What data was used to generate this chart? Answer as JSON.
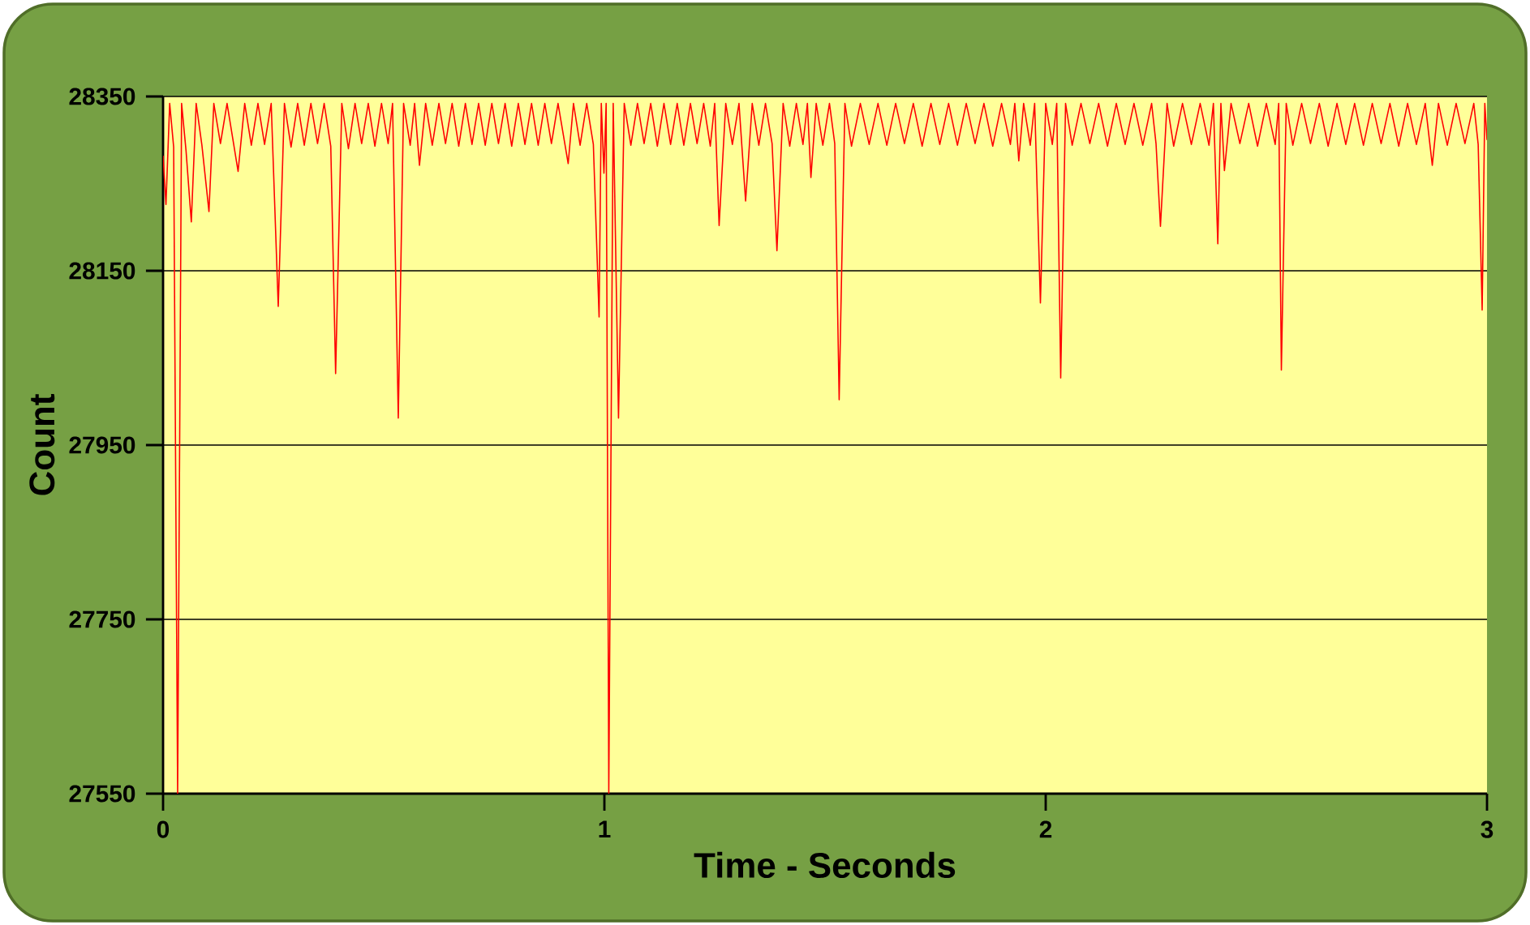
{
  "chart_data": {
    "type": "line",
    "xlabel": "Time - Seconds",
    "ylabel": "Count",
    "x": [
      0,
      0.0066,
      0.015,
      0.024,
      0.033,
      0.042,
      0.052,
      0.064,
      0.075,
      0.088,
      0.104,
      0.115,
      0.13,
      0.145,
      0.17,
      0.185,
      0.2,
      0.215,
      0.23,
      0.245,
      0.261,
      0.275,
      0.29,
      0.305,
      0.32,
      0.335,
      0.35,
      0.365,
      0.38,
      0.391,
      0.405,
      0.42,
      0.435,
      0.45,
      0.465,
      0.48,
      0.495,
      0.51,
      0.52,
      0.533,
      0.545,
      0.56,
      0.57,
      0.581,
      0.595,
      0.61,
      0.625,
      0.64,
      0.655,
      0.67,
      0.685,
      0.7,
      0.715,
      0.73,
      0.745,
      0.76,
      0.775,
      0.79,
      0.805,
      0.82,
      0.835,
      0.85,
      0.865,
      0.88,
      0.895,
      0.918,
      0.93,
      0.945,
      0.96,
      0.975,
      0.988,
      0.993,
      0.999,
      1.004,
      1.01,
      1.02,
      1.032,
      1.045,
      1.06,
      1.075,
      1.09,
      1.105,
      1.12,
      1.135,
      1.15,
      1.165,
      1.18,
      1.195,
      1.21,
      1.225,
      1.24,
      1.25,
      1.26,
      1.275,
      1.29,
      1.305,
      1.32,
      1.335,
      1.35,
      1.365,
      1.38,
      1.391,
      1.405,
      1.42,
      1.435,
      1.45,
      1.46,
      1.468,
      1.48,
      1.495,
      1.51,
      1.522,
      1.532,
      1.545,
      1.56,
      1.58,
      1.6,
      1.62,
      1.64,
      1.66,
      1.68,
      1.7,
      1.72,
      1.74,
      1.76,
      1.78,
      1.8,
      1.82,
      1.84,
      1.86,
      1.88,
      1.9,
      1.92,
      1.93,
      1.939,
      1.95,
      1.965,
      1.975,
      1.988,
      2.0,
      2.015,
      2.025,
      2.034,
      2.045,
      2.06,
      2.08,
      2.1,
      2.12,
      2.14,
      2.16,
      2.18,
      2.2,
      2.22,
      2.24,
      2.25,
      2.26,
      2.275,
      2.29,
      2.31,
      2.33,
      2.35,
      2.37,
      2.38,
      2.39,
      2.397,
      2.405,
      2.42,
      2.44,
      2.46,
      2.48,
      2.5,
      2.52,
      2.528,
      2.534,
      2.545,
      2.56,
      2.58,
      2.6,
      2.62,
      2.64,
      2.66,
      2.68,
      2.7,
      2.72,
      2.74,
      2.76,
      2.78,
      2.8,
      2.82,
      2.84,
      2.86,
      2.876,
      2.89,
      2.91,
      2.93,
      2.95,
      2.97,
      2.98,
      2.989,
      2.995,
      3.0
    ],
    "series": [
      {
        "color": "#ff0000",
        "values": [
          28282,
          28226,
          28342,
          28292,
          27550,
          28342,
          28288,
          28206,
          28342,
          28294,
          28218,
          28342,
          28296,
          28342,
          28264,
          28342,
          28294,
          28342,
          28295,
          28342,
          28109,
          28342,
          28292,
          28342,
          28294,
          28342,
          28296,
          28342,
          28293,
          28032,
          28342,
          28290,
          28342,
          28296,
          28342,
          28293,
          28342,
          28296,
          28342,
          27981,
          28342,
          28294,
          28342,
          28271,
          28342,
          28294,
          28342,
          28296,
          28342,
          28293,
          28342,
          28295,
          28342,
          28294,
          28342,
          28296,
          28342,
          28293,
          28342,
          28295,
          28342,
          28294,
          28342,
          28296,
          28342,
          28273,
          28342,
          28294,
          28342,
          28295,
          28097,
          28342,
          28262,
          28342,
          27550,
          28342,
          27981,
          28342,
          28294,
          28342,
          28296,
          28342,
          28293,
          28342,
          28295,
          28342,
          28294,
          28342,
          28296,
          28342,
          28293,
          28342,
          28202,
          28342,
          28295,
          28342,
          28230,
          28342,
          28294,
          28342,
          28296,
          28173,
          28342,
          28293,
          28342,
          28295,
          28342,
          28257,
          28342,
          28294,
          28342,
          28296,
          28002,
          28342,
          28293,
          28342,
          28295,
          28342,
          28294,
          28342,
          28296,
          28342,
          28293,
          28342,
          28295,
          28342,
          28294,
          28342,
          28296,
          28342,
          28293,
          28342,
          28295,
          28342,
          28276,
          28342,
          28294,
          28342,
          28113,
          28342,
          28295,
          28342,
          28027,
          28342,
          28294,
          28342,
          28296,
          28342,
          28293,
          28342,
          28295,
          28342,
          28294,
          28342,
          28296,
          28201,
          28342,
          28293,
          28342,
          28295,
          28342,
          28294,
          28342,
          28181,
          28342,
          28265,
          28342,
          28296,
          28342,
          28293,
          28342,
          28295,
          28342,
          28036,
          28342,
          28294,
          28342,
          28296,
          28342,
          28293,
          28342,
          28295,
          28342,
          28294,
          28342,
          28296,
          28342,
          28293,
          28342,
          28295,
          28342,
          28271,
          28342,
          28294,
          28342,
          28296,
          28342,
          28295,
          28105,
          28342,
          28300
        ]
      }
    ],
    "xlim": [
      0,
      3
    ],
    "xticks": [
      0,
      1,
      2,
      3
    ],
    "ylim": [
      27550,
      28350
    ],
    "yticks": [
      27550,
      27750,
      27950,
      28150,
      28350
    ],
    "grid": "y",
    "marker": "none",
    "line_style": "solid"
  }
}
